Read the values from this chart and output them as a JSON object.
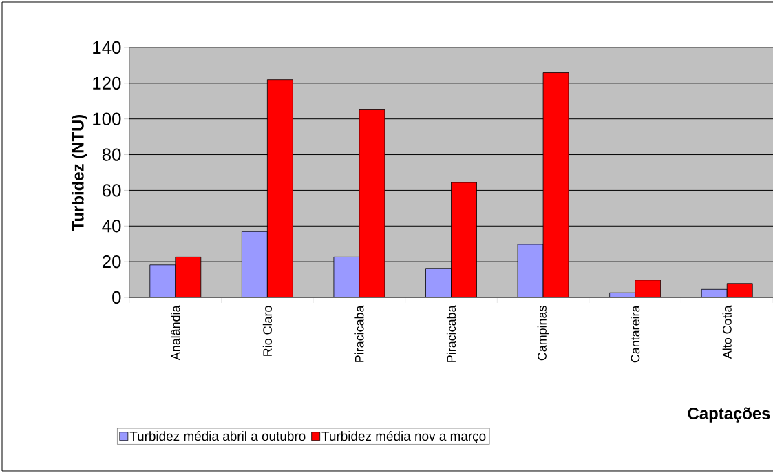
{
  "chart_data": {
    "type": "bar",
    "xlabel": "Captações",
    "ylabel": "Turbidez (NTU)",
    "categories": [
      "Analândia",
      "Rio Claro",
      "Piracicaba",
      "Piracicaba",
      "Campinas",
      "Cantareira",
      "Alto Cotia"
    ],
    "series": [
      {
        "name": "Turbidez média abril a outubro",
        "color": "#9999ff",
        "values": [
          18.2,
          36.9,
          22.6,
          16.3,
          29.7,
          2.6,
          4.5
        ]
      },
      {
        "name": "Turbidez média nov a março",
        "color": "#ff0000",
        "values": [
          22.6,
          122,
          105.1,
          64.4,
          125.9,
          9.7,
          7.8
        ]
      }
    ],
    "ylim": [
      0,
      140
    ],
    "yticks": [
      0,
      20,
      40,
      60,
      80,
      100,
      120,
      140
    ],
    "grid": "y",
    "legend": "bottom left"
  }
}
